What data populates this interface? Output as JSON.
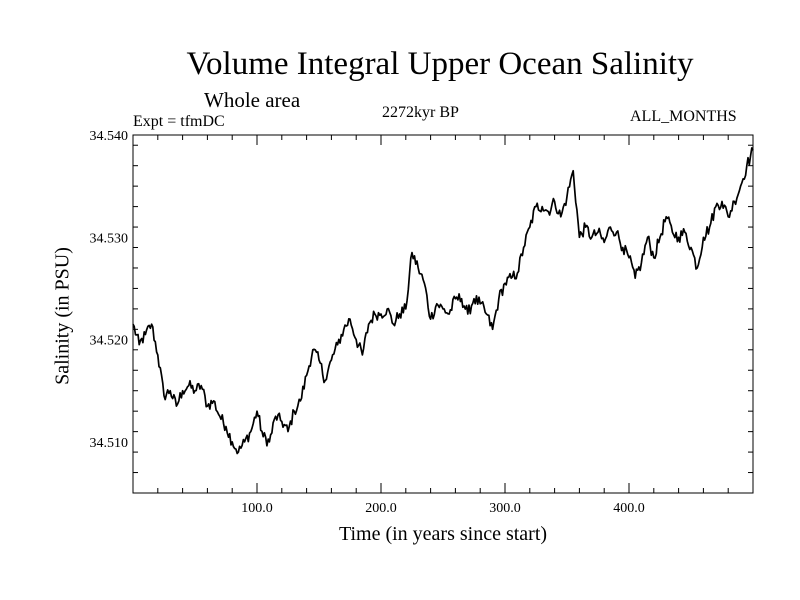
{
  "header": {
    "title": "Volume Integral Upper Ocean Salinity",
    "subtitle": "Whole area",
    "experiment": "Expt = tfmDC",
    "period": "2272kyr BP",
    "months": "ALL_MONTHS"
  },
  "chart_data": {
    "type": "line",
    "title": "Volume Integral Upper Ocean Salinity",
    "xlabel": "Time (in years since start)",
    "ylabel": "Salinity (in PSU)",
    "xlim": [
      0,
      500
    ],
    "ylim": [
      34.505,
      34.54
    ],
    "xticks": [
      100,
      200,
      300,
      400
    ],
    "xtick_labels": [
      "100.0",
      "200.0",
      "300.0",
      "400.0"
    ],
    "yticks": [
      34.51,
      34.52,
      34.53,
      34.54
    ],
    "ytick_labels": [
      "34.510",
      "34.520",
      "34.530",
      "34.540"
    ],
    "grid": false,
    "series": [
      {
        "name": "Salinity",
        "color": "#000000",
        "x": [
          0,
          5,
          10,
          15,
          20,
          25,
          30,
          35,
          40,
          45,
          50,
          55,
          60,
          65,
          70,
          75,
          80,
          85,
          90,
          95,
          100,
          105,
          110,
          115,
          120,
          125,
          130,
          135,
          140,
          145,
          150,
          155,
          160,
          165,
          170,
          175,
          180,
          185,
          190,
          195,
          200,
          205,
          210,
          215,
          220,
          225,
          230,
          235,
          240,
          245,
          250,
          255,
          260,
          265,
          270,
          275,
          280,
          285,
          290,
          295,
          300,
          305,
          310,
          315,
          320,
          325,
          330,
          335,
          340,
          345,
          350,
          355,
          360,
          365,
          370,
          375,
          380,
          385,
          390,
          395,
          400,
          405,
          410,
          415,
          420,
          425,
          430,
          435,
          440,
          445,
          450,
          455,
          460,
          465,
          470,
          475,
          480,
          485,
          490,
          495,
          500
        ],
        "values": [
          34.5215,
          34.5195,
          34.5205,
          34.5215,
          34.5185,
          34.5145,
          34.515,
          34.5135,
          34.515,
          34.5155,
          34.515,
          34.5155,
          34.5135,
          34.514,
          34.5125,
          34.5115,
          34.51,
          34.509,
          34.51,
          34.511,
          34.513,
          34.5105,
          34.51,
          34.5125,
          34.512,
          34.511,
          34.513,
          34.514,
          34.5165,
          34.519,
          34.518,
          34.516,
          34.518,
          34.5195,
          34.521,
          34.522,
          34.52,
          34.5185,
          34.5215,
          34.5225,
          34.5225,
          34.523,
          34.5215,
          34.5225,
          34.523,
          34.5285,
          34.527,
          34.5255,
          34.522,
          34.5235,
          34.523,
          34.5225,
          34.524,
          34.524,
          34.5225,
          34.524,
          34.5235,
          34.5225,
          34.521,
          34.524,
          34.5255,
          34.526,
          34.5265,
          34.529,
          34.531,
          34.533,
          34.533,
          34.5325,
          34.5335,
          34.532,
          34.534,
          34.5365,
          34.53,
          34.531,
          34.53,
          34.5305,
          34.5295,
          34.531,
          34.5305,
          34.529,
          34.528,
          34.526,
          34.5275,
          34.53,
          34.528,
          34.53,
          34.532,
          34.5305,
          34.53,
          34.5305,
          34.529,
          34.527,
          34.53,
          34.531,
          34.533,
          34.5335,
          34.532,
          34.5335,
          34.535,
          34.537,
          34.5385
        ]
      }
    ]
  }
}
